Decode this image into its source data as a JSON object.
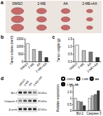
{
  "figure": {
    "panel_labels": [
      "a",
      "b",
      "c",
      "d"
    ],
    "photo_labels": [
      "DMSO",
      "2-ME",
      "AA",
      "2-ME+AA"
    ],
    "blot": {
      "lanes": [
        "DMSO",
        "2-ME",
        "AA",
        "2-ME+AA"
      ],
      "bands": [
        {
          "name": "Bcl-2",
          "size": "26 kDa"
        },
        {
          "name": "Caspase 3",
          "size": "35 kDa"
        },
        {
          "name": "β-actin",
          "size": "42 kDa"
        }
      ]
    }
  },
  "chart_data": [
    {
      "type": "bar",
      "ylabel": "Tumor volume (mm³)",
      "categories": [
        "DMSO",
        "2-ME",
        "AA",
        "2-ME+AA"
      ],
      "values": [
        1200,
        820,
        700,
        300
      ],
      "colors": [
        "#f2f2f2",
        "#bdbdbd",
        "#7a7a7a",
        "#333333"
      ],
      "ylim": [
        0,
        1500
      ],
      "yticks": [
        0,
        500,
        1000,
        1500
      ],
      "grid": false
    },
    {
      "type": "bar",
      "ylabel": "Tumor weight (g)",
      "categories": [
        "DMSO",
        "2-ME",
        "AA",
        "2-ME+AA"
      ],
      "values": [
        1.1,
        0.75,
        0.65,
        0.3
      ],
      "colors": [
        "#f2f2f2",
        "#bdbdbd",
        "#7a7a7a",
        "#333333"
      ],
      "ylim": [
        0,
        1.5
      ],
      "yticks": [
        {
          "value": 0,
          "label": "0.0"
        },
        {
          "value": 0.5,
          "label": "0.5"
        },
        {
          "value": 1,
          "label": "1.0"
        },
        {
          "value": 1.5,
          "label": "1.5"
        }
      ],
      "grid": false
    },
    {
      "type": "bar",
      "ylabel": "Relative expression",
      "categories": [
        "Bcl-2",
        "Caspase 3"
      ],
      "series": [
        {
          "name": "DMSO",
          "color": "#f2f2f2",
          "values": [
            1,
            1
          ]
        },
        {
          "name": "2-ME",
          "color": "#bdbdbd",
          "values": [
            0.75,
            1.2
          ]
        },
        {
          "name": "AA",
          "color": "#7a7a7a",
          "values": [
            0.7,
            1.3
          ]
        },
        {
          "name": "2-ME+AA",
          "color": "#333333",
          "values": [
            0.4,
            1.6
          ]
        }
      ],
      "ylim": [
        0,
        2
      ],
      "yticks": [
        0,
        0.5,
        1,
        1.5,
        2
      ],
      "grid": false,
      "legend": "top"
    }
  ]
}
